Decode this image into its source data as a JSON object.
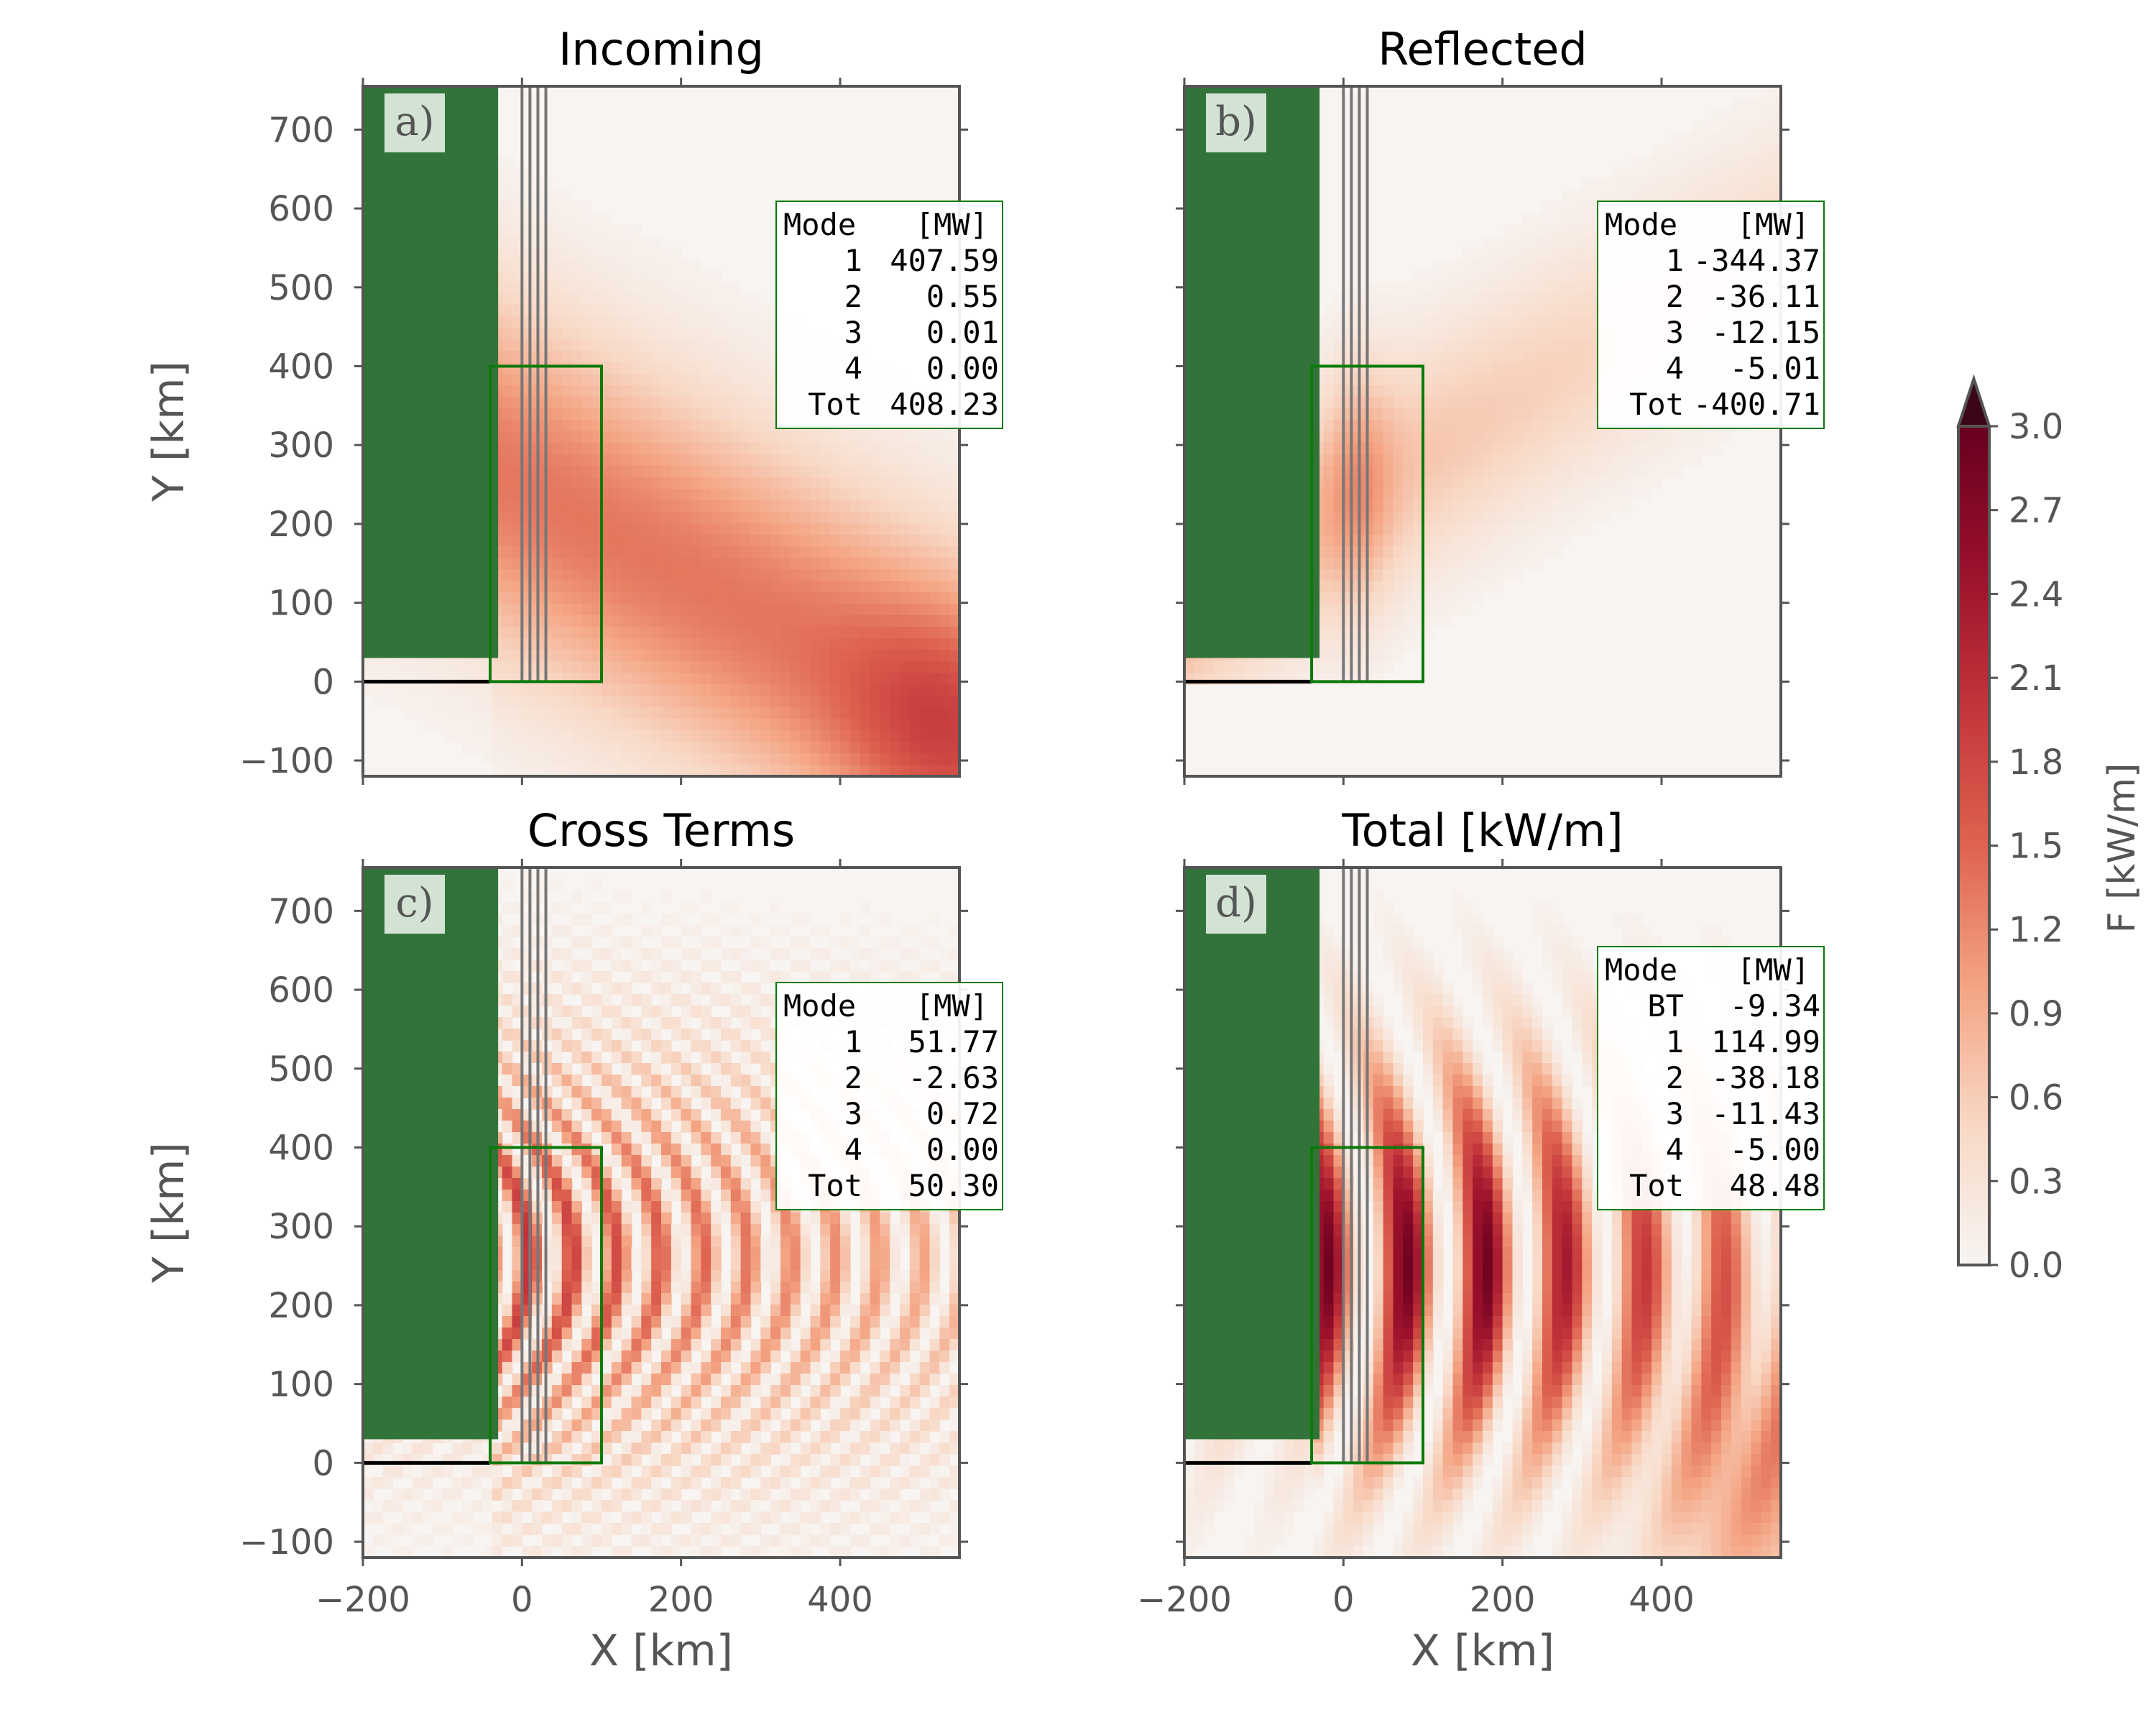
{
  "figure": {
    "colorbar": {
      "label": "F [kW/m]",
      "ticks": [
        "0.0",
        "0.3",
        "0.6",
        "0.9",
        "1.2",
        "1.5",
        "1.8",
        "2.1",
        "2.4",
        "2.7",
        "3.0"
      ],
      "range": [
        0,
        3.0
      ],
      "extend": "max",
      "colormap": "white-to-dark-red",
      "colors": [
        "#f7f4f2",
        "#f8d8c5",
        "#f4a483",
        "#de6350",
        "#c3343a",
        "#99102b",
        "#67001f"
      ]
    },
    "accent_colors": {
      "land": "#32733a",
      "box": "#0a7a0a",
      "coast": "#000000",
      "lines": "#777777",
      "frame": "#555555"
    }
  },
  "chart_data": [
    {
      "type": "heatmap",
      "title": "Incoming",
      "panel_label": "a)",
      "xlabel": "",
      "ylabel": "Y [km]",
      "xlim": [
        -200,
        550
      ],
      "ylim": [
        -120,
        755
      ],
      "xticks": [],
      "yticks": [
        "700",
        "600",
        "500",
        "400",
        "300",
        "200",
        "100",
        "0",
        "−100"
      ],
      "table": {
        "header": [
          "Mode",
          "[MW]"
        ],
        "rows": [
          [
            "1",
            "407.59"
          ],
          [
            "2",
            "0.55"
          ],
          [
            "3",
            "0.01"
          ],
          [
            "4",
            "0.00"
          ],
          [
            "Tot",
            "408.23"
          ]
        ]
      },
      "field_description": "broad energy beam from lower-right toward ridge, peak about 1.5 kW/m",
      "annotations": {
        "land": {
          "x": [
            -200,
            -30
          ],
          "y": [
            30,
            755
          ]
        },
        "box": {
          "x": [
            -40,
            100
          ],
          "y": [
            0,
            400
          ]
        },
        "ridge_lines_x": [
          0,
          10,
          20,
          30
        ]
      }
    },
    {
      "type": "heatmap",
      "title": "Reflected",
      "panel_label": "b)",
      "xlabel": "",
      "ylabel": "",
      "xlim": [
        -200,
        550
      ],
      "ylim": [
        -120,
        755
      ],
      "xticks": [],
      "yticks": [],
      "table": {
        "header": [
          "Mode",
          "[MW]"
        ],
        "rows": [
          [
            "1",
            "-344.37"
          ],
          [
            "2",
            "-36.11"
          ],
          [
            "3",
            "-12.15"
          ],
          [
            "4",
            "-5.01"
          ],
          [
            "Tot",
            "-400.71"
          ]
        ]
      },
      "field_description": "reflected beam from ridge toward upper-right, peak about 0.9 kW/m",
      "annotations": {
        "land": {
          "x": [
            -200,
            -30
          ],
          "y": [
            30,
            755
          ]
        },
        "box": {
          "x": [
            -40,
            100
          ],
          "y": [
            0,
            400
          ]
        },
        "ridge_lines_x": [
          0,
          10,
          20,
          30
        ]
      }
    },
    {
      "type": "heatmap",
      "title": "Cross Terms",
      "panel_label": "c)",
      "xlabel": "",
      "ylabel": "Y [km]",
      "xlim": [
        -200,
        550
      ],
      "ylim": [
        -120,
        755
      ],
      "xticks": [],
      "yticks": [
        "700",
        "600",
        "500",
        "400",
        "300",
        "200",
        "100",
        "0",
        "−100"
      ],
      "table": {
        "header": [
          "Mode",
          "[MW]"
        ],
        "rows": [
          [
            "1",
            "51.77"
          ],
          [
            "2",
            "-2.63"
          ],
          [
            "3",
            "0.72"
          ],
          [
            "4",
            "0.00"
          ],
          [
            "Tot",
            "50.30"
          ]
        ]
      },
      "field_description": "standing-wave interference stripes east of ridge, peak about 2.4 kW/m",
      "annotations": {
        "land": {
          "x": [
            -200,
            -30
          ],
          "y": [
            30,
            755
          ]
        },
        "box": {
          "x": [
            -40,
            100
          ],
          "y": [
            0,
            400
          ]
        },
        "ridge_lines_x": [
          0,
          10,
          20,
          30
        ]
      }
    },
    {
      "type": "heatmap",
      "title": "Total [kW/m]",
      "panel_label": "d)",
      "xlabel": "X [km]",
      "ylabel": "",
      "xlim": [
        -200,
        550
      ],
      "ylim": [
        -120,
        755
      ],
      "xticks": [
        "−200",
        "0",
        "200",
        "400"
      ],
      "yticks": [],
      "table": {
        "header": [
          "Mode",
          "[MW]"
        ],
        "rows": [
          [
            "BT",
            "-9.34"
          ],
          [
            "1",
            "114.99"
          ],
          [
            "2",
            "-38.18"
          ],
          [
            "3",
            "-11.43"
          ],
          [
            "4",
            "-5.00"
          ],
          [
            "Tot",
            "48.48"
          ]
        ]
      },
      "field_description": "strong stripes with peaks near x=80 and x=180 km, up to about 3 kW/m",
      "annotations": {
        "land": {
          "x": [
            -200,
            -30
          ],
          "y": [
            30,
            755
          ]
        },
        "box": {
          "x": [
            -40,
            100
          ],
          "y": [
            0,
            400
          ]
        },
        "ridge_lines_x": [
          0,
          10,
          20,
          30
        ]
      }
    }
  ],
  "shared_xlabel_left": "X [km]",
  "shared_xticks_left": [
    "−200",
    "0",
    "200",
    "400"
  ]
}
